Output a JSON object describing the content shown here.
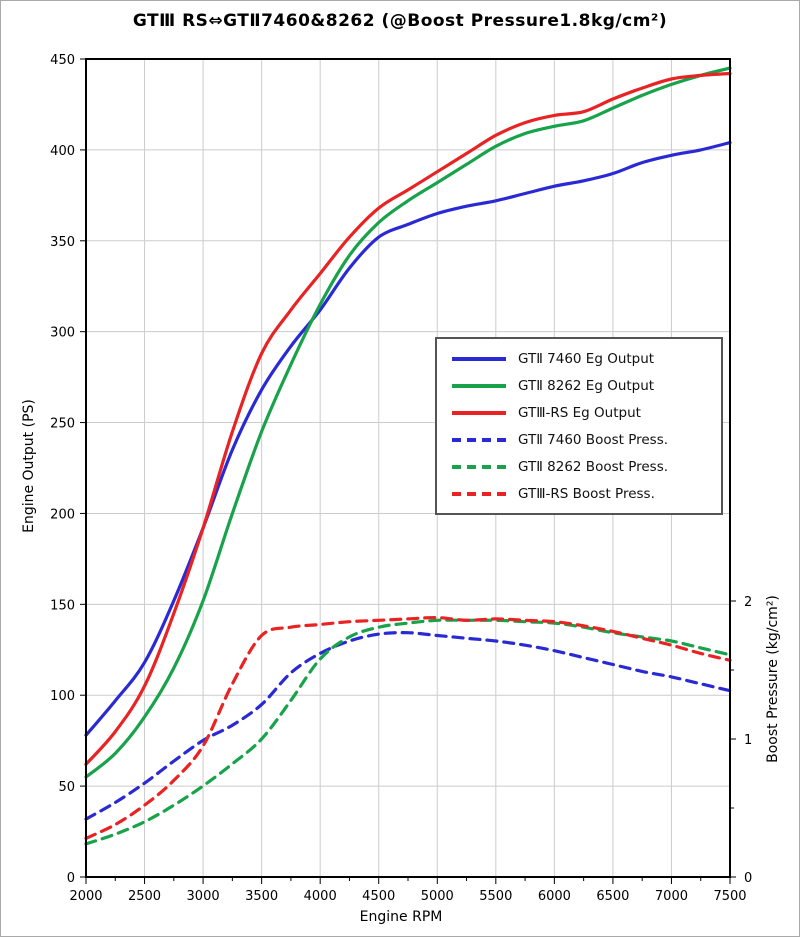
{
  "chart_data": {
    "type": "line",
    "title": "GTⅢ RS⇔GTⅡ7460&8262 (@Boost Pressure1.8kg/cm²)",
    "xlabel": "Engine RPM",
    "ylabel_left": "Engine Output (PS)",
    "ylabel_right": "Boost Pressure (kg/cm²)",
    "xlim": [
      2000,
      7500
    ],
    "ylim_left": [
      0,
      450
    ],
    "y_right_units_visible": [
      0,
      2
    ],
    "x_major_ticks": [
      2000,
      2500,
      3000,
      3500,
      4000,
      4500,
      5000,
      5500,
      6000,
      6500,
      7000,
      7500
    ],
    "x_minor_step": 250,
    "y_left_ticks": [
      0,
      50,
      100,
      150,
      200,
      250,
      300,
      350,
      400,
      450
    ],
    "y_right_ticks": [
      0,
      1,
      2
    ],
    "y_right_minor_ticks": [
      0.5,
      1.5
    ],
    "grid": "on",
    "legend_position": "center-right",
    "colors": {
      "blue": "#2a2ad4",
      "green": "#18a24a",
      "red": "#e92323",
      "grid": "#cccccc",
      "axis": "#000000"
    },
    "x": [
      2000,
      2250,
      2500,
      2750,
      3000,
      3250,
      3500,
      3750,
      4000,
      4250,
      4500,
      4750,
      5000,
      5250,
      5500,
      5750,
      6000,
      6250,
      6500,
      6750,
      7000,
      7250,
      7500
    ],
    "series": [
      {
        "label": "GTⅡ 7460 Eg Output",
        "color": "#2a2ad4",
        "style": "solid",
        "axis": "left",
        "values": [
          78,
          97,
          118,
          152,
          192,
          235,
          268,
          292,
          312,
          335,
          352,
          359,
          365,
          369,
          372,
          376,
          380,
          383,
          387,
          393,
          397,
          400,
          404
        ]
      },
      {
        "label": "GTⅡ 8262 Eg Output",
        "color": "#18a24a",
        "style": "solid",
        "axis": "left",
        "values": [
          55,
          68,
          88,
          115,
          152,
          200,
          245,
          282,
          315,
          342,
          360,
          372,
          382,
          392,
          402,
          409,
          413,
          416,
          423,
          430,
          436,
          441,
          445
        ]
      },
      {
        "label": "GTⅢ-RS Eg Output",
        "color": "#e92323",
        "style": "solid",
        "axis": "left",
        "values": [
          62,
          80,
          105,
          145,
          192,
          245,
          288,
          312,
          332,
          352,
          368,
          378,
          388,
          398,
          408,
          415,
          419,
          421,
          428,
          434,
          439,
          441,
          442
        ]
      },
      {
        "label": "GTⅡ 7460 Boost Press.",
        "color": "#2a2ad4",
        "style": "dashed",
        "axis": "right",
        "values": [
          0.42,
          0.54,
          0.68,
          0.84,
          0.99,
          1.1,
          1.25,
          1.48,
          1.62,
          1.71,
          1.76,
          1.77,
          1.75,
          1.73,
          1.71,
          1.68,
          1.64,
          1.59,
          1.54,
          1.49,
          1.45,
          1.4,
          1.35
        ]
      },
      {
        "label": "GTⅡ 8262 Boost Press.",
        "color": "#18a24a",
        "style": "dashed",
        "axis": "right",
        "values": [
          0.24,
          0.31,
          0.4,
          0.52,
          0.66,
          0.82,
          1.0,
          1.28,
          1.58,
          1.74,
          1.81,
          1.84,
          1.86,
          1.86,
          1.86,
          1.85,
          1.84,
          1.81,
          1.77,
          1.74,
          1.71,
          1.66,
          1.61
        ]
      },
      {
        "label": "GTⅢ-RS Boost Press.",
        "color": "#e92323",
        "style": "dashed",
        "axis": "right",
        "values": [
          0.28,
          0.38,
          0.52,
          0.7,
          0.95,
          1.4,
          1.75,
          1.81,
          1.83,
          1.85,
          1.86,
          1.87,
          1.88,
          1.86,
          1.87,
          1.86,
          1.85,
          1.82,
          1.78,
          1.73,
          1.68,
          1.62,
          1.57
        ]
      }
    ]
  }
}
